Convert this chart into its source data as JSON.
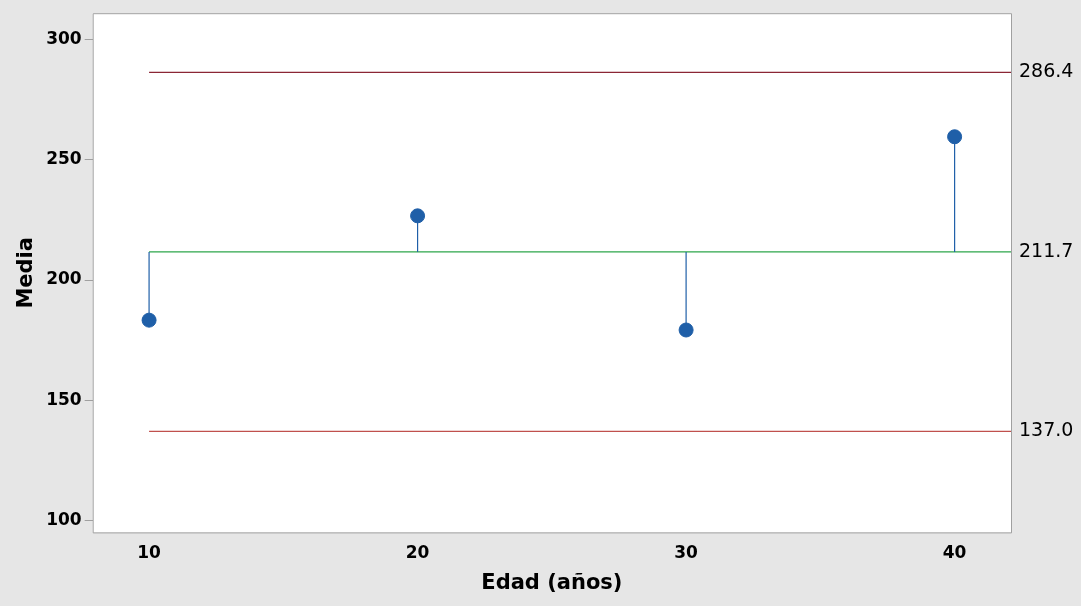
{
  "chart_data": {
    "type": "scatter",
    "xlabel": "Edad (años)",
    "ylabel": "Media",
    "x": [
      10,
      20,
      30,
      40
    ],
    "series": [
      {
        "color": "#1f5fa8",
        "values": [
          183.3,
          226.7,
          179.2,
          259.6
        ],
        "errors": [
          [
            183.3,
            211.7
          ],
          [
            211.7,
            226.7
          ],
          [
            179.2,
            211.7
          ],
          [
            211.7,
            259.6
          ]
        ]
      }
    ],
    "xlim": [
      7.9,
      42.1
    ],
    "xticks": [
      10,
      20,
      30,
      40
    ],
    "ylim": [
      95,
      311
    ],
    "yticks": [
      100,
      150,
      200,
      250,
      300
    ],
    "ref_lines": [
      {
        "axis": "y",
        "value": 286.4,
        "label": "286.4",
        "color": "#8b2635"
      },
      {
        "axis": "y",
        "value": 211.7,
        "label": "211.7",
        "color": "#2ca64a"
      },
      {
        "axis": "y",
        "value": 137.0,
        "label": "137.0",
        "color": "#c0504d"
      }
    ],
    "marker": "circle",
    "grid": false,
    "legend": false
  }
}
